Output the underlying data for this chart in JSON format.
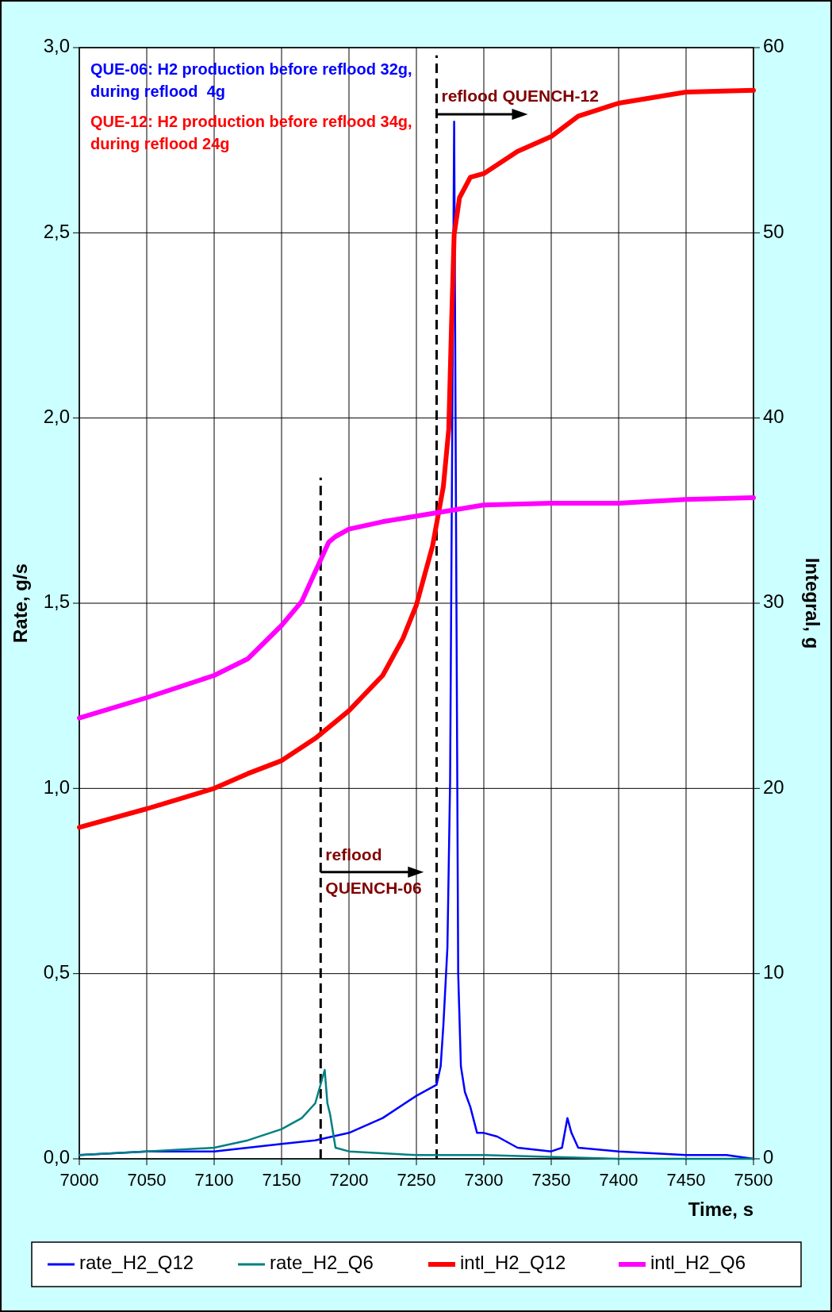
{
  "chart_data": {
    "type": "line",
    "xlabel": "Time, s",
    "ylabel": "Rate, g/s",
    "y2label": "Integral, g",
    "xlim": [
      7000,
      7500
    ],
    "xticks": [
      7000,
      7050,
      7100,
      7150,
      7200,
      7250,
      7300,
      7350,
      7400,
      7450,
      7500
    ],
    "ylim": [
      0,
      3
    ],
    "yticks": [
      {
        "value": 0,
        "label": "0,0"
      },
      {
        "value": 0.5,
        "label": "0,5"
      },
      {
        "value": 1,
        "label": "1,0"
      },
      {
        "value": 1.5,
        "label": "1,5"
      },
      {
        "value": 2,
        "label": "2,0"
      },
      {
        "value": 2.5,
        "label": "2,5"
      },
      {
        "value": 3,
        "label": "3,0"
      }
    ],
    "y2lim": [
      0,
      60
    ],
    "y2ticks": [
      0,
      10,
      20,
      30,
      40,
      50,
      60
    ],
    "grid": true,
    "legend": "bottom",
    "series": [
      {
        "name": "rate_H2_Q12",
        "color": "#0000ff",
        "x": [
          7000,
          7050,
          7100,
          7150,
          7175,
          7200,
          7225,
          7250,
          7265,
          7268,
          7270,
          7273,
          7275,
          7278,
          7281,
          7283,
          7286,
          7290,
          7295,
          7300,
          7310,
          7325,
          7350,
          7358,
          7362,
          7365,
          7370,
          7400,
          7450,
          7480,
          7500
        ],
        "values": [
          0.01,
          0.02,
          0.02,
          0.04,
          0.05,
          0.07,
          0.11,
          0.17,
          0.2,
          0.25,
          0.36,
          0.57,
          1.02,
          2.8,
          0.5,
          0.25,
          0.18,
          0.14,
          0.07,
          0.07,
          0.06,
          0.03,
          0.02,
          0.03,
          0.11,
          0.07,
          0.03,
          0.02,
          0.01,
          0.01,
          0
        ]
      },
      {
        "name": "rate_H2_Q6",
        "color": "#008080",
        "x": [
          7000,
          7050,
          7100,
          7125,
          7150,
          7165,
          7175,
          7182,
          7184,
          7186,
          7190,
          7200,
          7250,
          7300,
          7400,
          7500
        ],
        "values": [
          0.01,
          0.02,
          0.03,
          0.05,
          0.08,
          0.11,
          0.15,
          0.24,
          0.15,
          0.12,
          0.03,
          0.02,
          0.01,
          0.01,
          0,
          0
        ]
      },
      {
        "name": "intl_H2_Q12",
        "color": "#ff0000",
        "axis": "y2",
        "x": [
          7000,
          7050,
          7100,
          7125,
          7150,
          7175,
          7200,
          7225,
          7240,
          7250,
          7262,
          7270,
          7274,
          7276,
          7278,
          7282,
          7290,
          7300,
          7325,
          7350,
          7370,
          7400,
          7425,
          7450,
          7500
        ],
        "values": [
          17.9,
          18.9,
          20,
          20.8,
          21.5,
          22.7,
          24.2,
          26.1,
          28.1,
          29.9,
          33.1,
          36.3,
          39.4,
          44.9,
          49.9,
          51.9,
          53,
          53.2,
          54.4,
          55.2,
          56.3,
          57,
          57.3,
          57.6,
          57.7
        ]
      },
      {
        "name": "intl_H2_Q6",
        "color": "#ff00ff",
        "axis": "y2",
        "x": [
          7000,
          7050,
          7100,
          7125,
          7150,
          7165,
          7175,
          7185,
          7190,
          7200,
          7225,
          7250,
          7275,
          7300,
          7350,
          7400,
          7450,
          7500
        ],
        "values": [
          23.8,
          24.9,
          26.1,
          27,
          28.8,
          30.1,
          31.7,
          33.3,
          33.6,
          34,
          34.4,
          34.7,
          35,
          35.3,
          35.4,
          35.4,
          35.6,
          35.7
        ]
      }
    ],
    "ref_lines": [
      {
        "axis": "x",
        "value": 7179,
        "label": "reflood QUENCH-06",
        "color": "#000000",
        "line_style": "dashed"
      },
      {
        "axis": "x",
        "value": 7265,
        "label": "reflood QUENCH-12",
        "color": "#000000",
        "line_style": "dashed"
      }
    ],
    "annotations": [
      "QUE-06: H2 production before reflood 32g, during reflood  4g",
      "QUE-12: H2 production before reflood 34g, during reflood 24g"
    ]
  }
}
